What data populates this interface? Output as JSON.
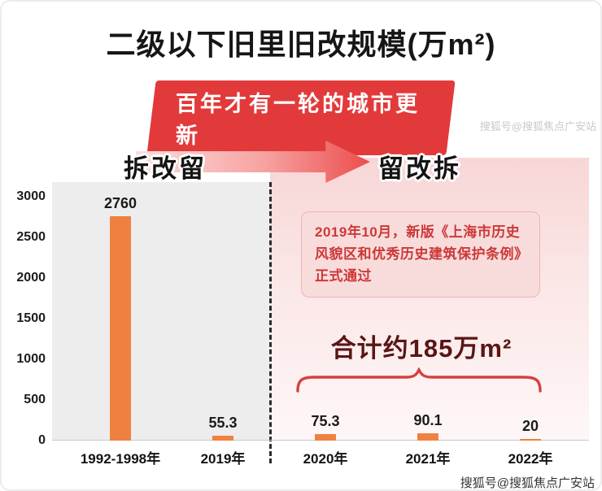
{
  "header": {
    "title": "二级以下旧里旧改规模(万m²)",
    "banner": "百年才有一轮的城市更新"
  },
  "phases": {
    "left": "拆改留",
    "right": "留改拆"
  },
  "annotation": "2019年10月，新版《上海市历史风貌区和优秀历史建筑保护条例》正式通过",
  "total": "合计约185万m²",
  "watermark": "搜狐号@搜狐焦点广安站",
  "colors": {
    "banner_bg": "#e23a3b",
    "bar": "#ef8140",
    "arrow_gradient_start": "#fbdede",
    "arrow_gradient_end": "#ec4d4d",
    "annotation_bg": "#f8dcdc",
    "annotation_text": "#cd3838",
    "total_text": "#5a1515",
    "brace": "#d64040",
    "left_panel_bg": "#ededed"
  },
  "chart_data": {
    "type": "bar",
    "title": "二级以下旧里旧改规模(万m²)",
    "categories": [
      "1992-1998年",
      "2019年",
      "2020年",
      "2021年",
      "2022年"
    ],
    "values": [
      2760,
      55.3,
      75.3,
      90.1,
      20
    ],
    "value_labels": [
      "2760",
      "55.3",
      "75.3",
      "90.1",
      "20"
    ],
    "yticks": [
      0,
      500,
      1000,
      1500,
      2000,
      2500,
      3000
    ],
    "ylim": [
      0,
      3000
    ],
    "ylabel": "",
    "xlabel": "",
    "bar_color": "#ef8140",
    "grid": false,
    "legend": false,
    "groups": [
      {
        "label": "拆改留",
        "categories": [
          "1992-1998年",
          "2019年"
        ]
      },
      {
        "label": "留改拆",
        "categories": [
          "2020年",
          "2021年",
          "2022年"
        ]
      }
    ],
    "annotations": [
      "2019年10月，新版《上海市历史风貌区和优秀历史建筑保护条例》正式通过",
      "合计约185万m²"
    ]
  }
}
